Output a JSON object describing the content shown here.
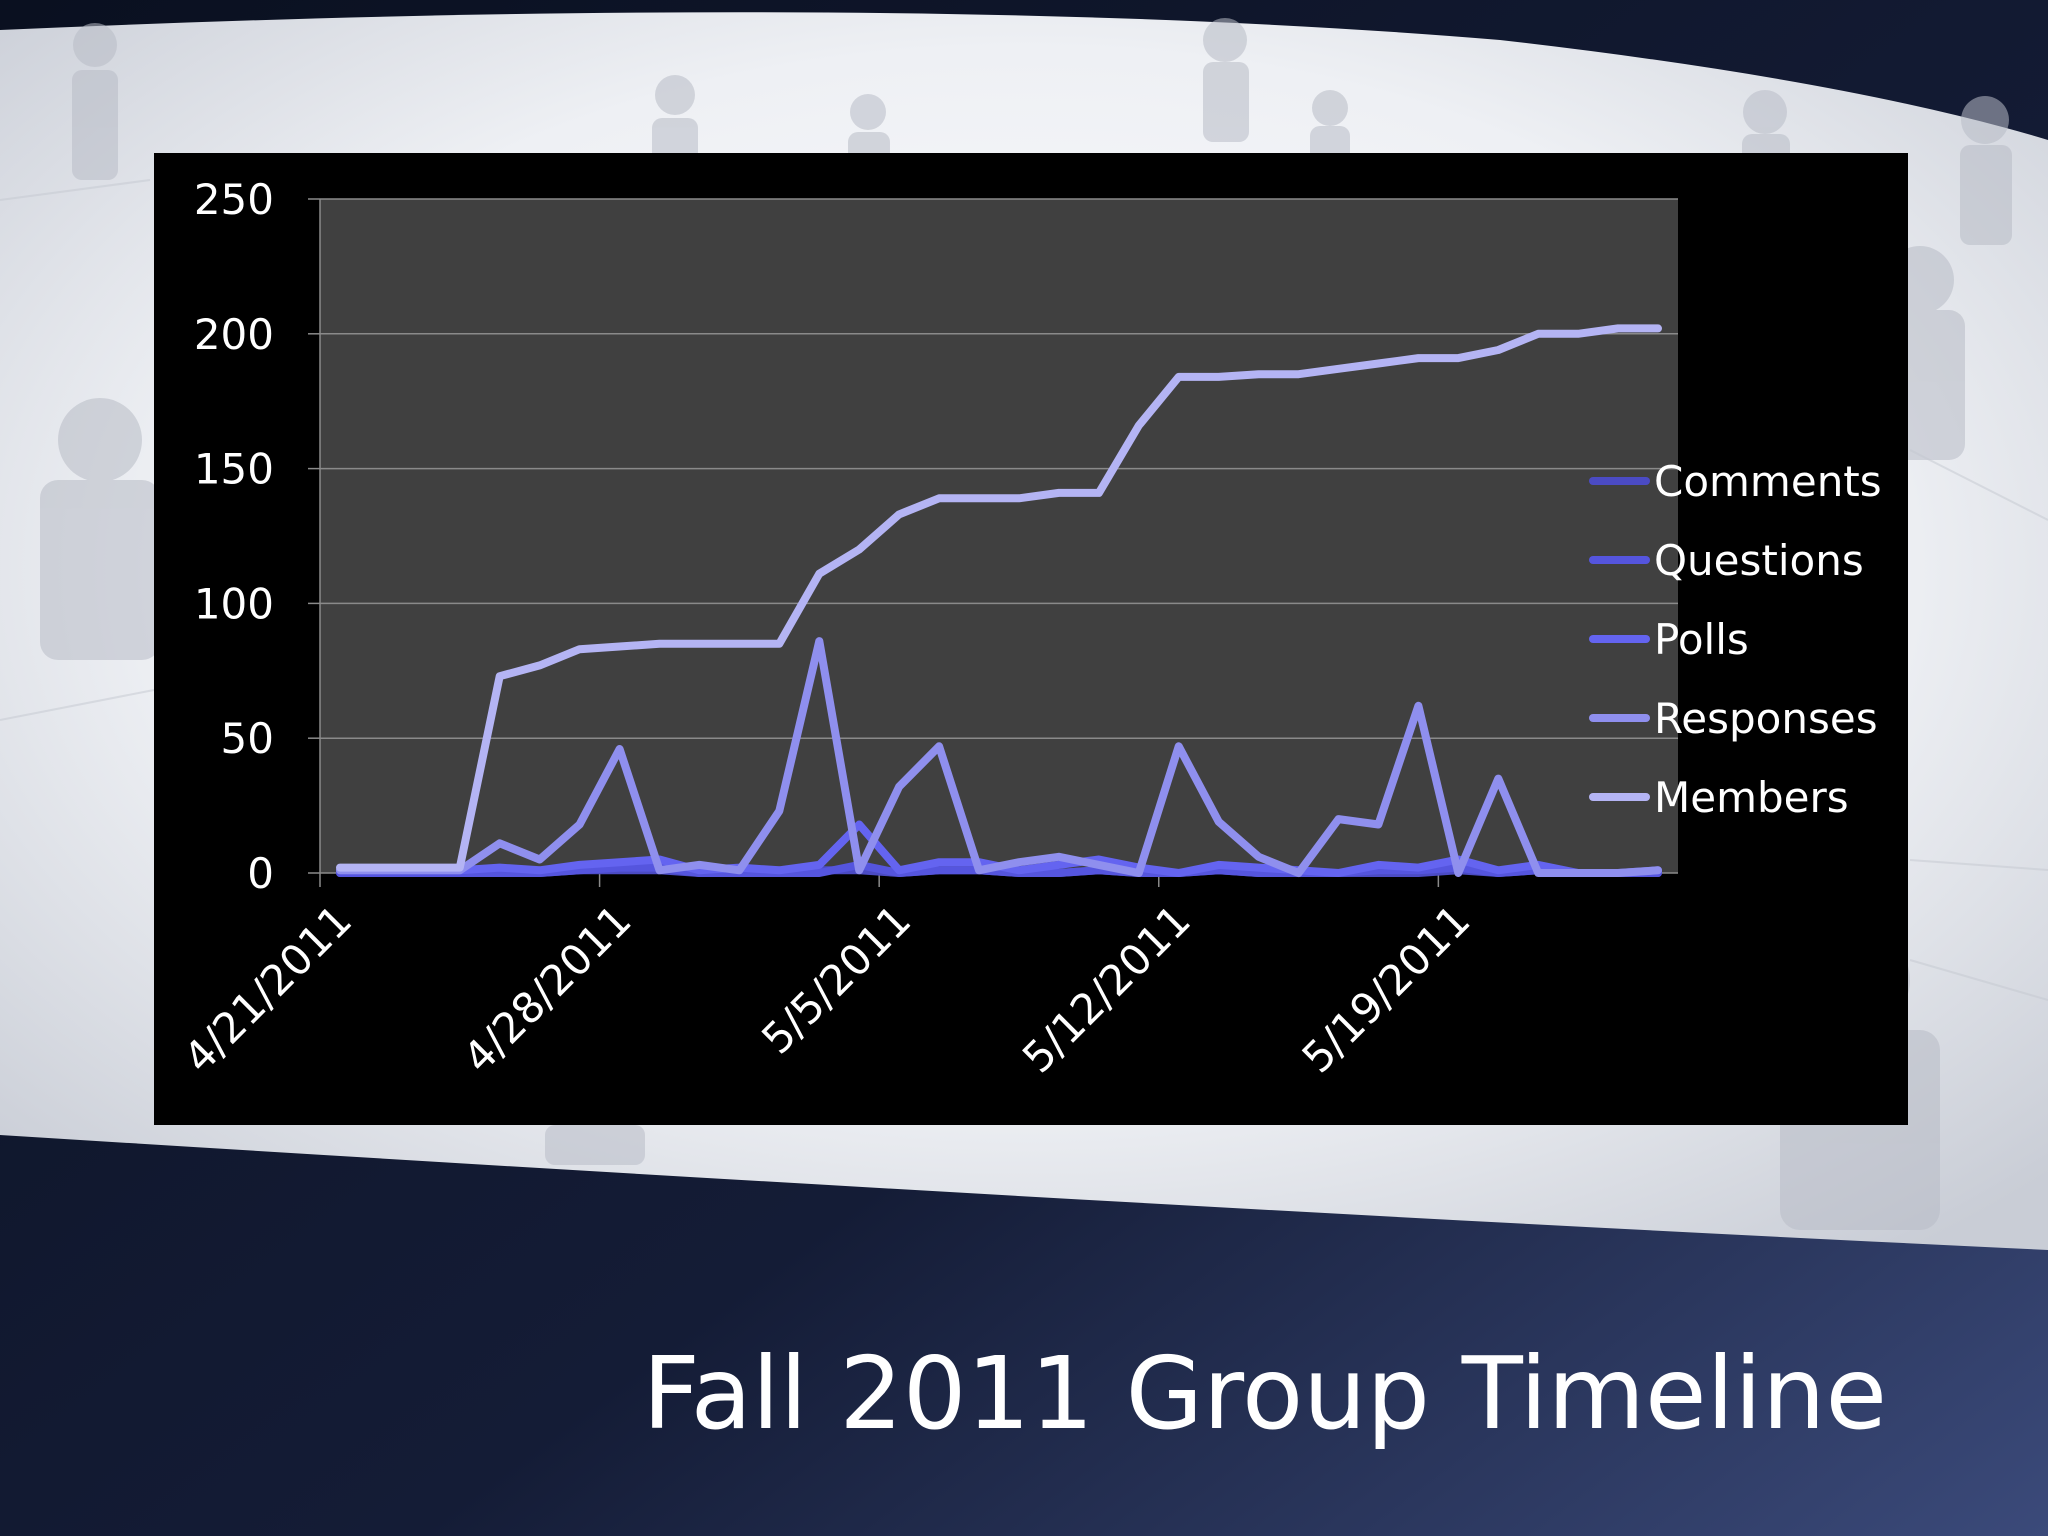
{
  "slide": {
    "title": "Fall 2011 Group Timeline"
  },
  "colors": {
    "slide_bg": "#0d1426",
    "chart_panel": "#000000",
    "plot_area": "#404040",
    "gridline": "#8a8a8a",
    "axis_text": "#ffffff",
    "comments": "#4b4bc4",
    "questions": "#5555de",
    "polls": "#6464f0",
    "responses": "#8f8fee",
    "members": "#b4b4f4"
  },
  "chart_data": {
    "type": "line",
    "title": "",
    "xlabel": "",
    "ylabel": "",
    "ylim": [
      0,
      250
    ],
    "yticks": [
      "0",
      "50",
      "100",
      "150",
      "200",
      "250"
    ],
    "xticks": [
      "4/21/2011",
      "4/28/2011",
      "5/5/2011",
      "5/12/2011",
      "5/19/2011"
    ],
    "grid": true,
    "legend_position": "right",
    "x": [
      "4/21/2011",
      "4/22/2011",
      "4/23/2011",
      "4/24/2011",
      "4/25/2011",
      "4/26/2011",
      "4/27/2011",
      "4/28/2011",
      "4/29/2011",
      "4/30/2011",
      "5/1/2011",
      "5/2/2011",
      "5/3/2011",
      "5/4/2011",
      "5/5/2011",
      "5/6/2011",
      "5/7/2011",
      "5/8/2011",
      "5/9/2011",
      "5/10/2011",
      "5/11/2011",
      "5/12/2011",
      "5/13/2011",
      "5/14/2011",
      "5/15/2011",
      "5/16/2011",
      "5/17/2011",
      "5/18/2011",
      "5/19/2011",
      "5/20/2011",
      "5/21/2011",
      "5/22/2011",
      "5/23/2011",
      "5/24/2011"
    ],
    "series": [
      {
        "name": "Comments",
        "color": "#4b4bc4",
        "values": [
          0,
          0,
          0,
          0,
          0,
          0,
          1,
          1,
          1,
          0,
          0,
          0,
          1,
          1,
          0,
          1,
          1,
          0,
          0,
          1,
          0,
          0,
          1,
          0,
          0,
          0,
          0,
          0,
          1,
          0,
          1,
          0,
          0,
          0
        ]
      },
      {
        "name": "Questions",
        "color": "#5555de",
        "values": [
          0,
          0,
          0,
          0,
          0,
          0,
          1,
          2,
          2,
          0,
          0,
          0,
          0,
          3,
          0,
          1,
          1,
          0,
          0,
          1,
          0,
          0,
          1,
          0,
          0,
          0,
          1,
          1,
          2,
          0,
          1,
          0,
          0,
          0
        ]
      },
      {
        "name": "Polls",
        "color": "#6464f0",
        "values": [
          1,
          1,
          1,
          1,
          2,
          1,
          3,
          4,
          5,
          1,
          2,
          1,
          3,
          18,
          1,
          4,
          4,
          1,
          3,
          5,
          2,
          0,
          3,
          2,
          1,
          0,
          3,
          2,
          5,
          1,
          3,
          0,
          0,
          1
        ]
      },
      {
        "name": "Responses",
        "color": "#8f8fee",
        "values": [
          1,
          1,
          1,
          1,
          11,
          5,
          18,
          46,
          1,
          3,
          1,
          23,
          86,
          1,
          32,
          47,
          1,
          4,
          6,
          3,
          0,
          47,
          19,
          6,
          0,
          20,
          18,
          62,
          0,
          35,
          0,
          0,
          0,
          1
        ]
      },
      {
        "name": "Members",
        "color": "#b4b4f4",
        "values": [
          2,
          2,
          2,
          2,
          73,
          77,
          83,
          84,
          85,
          85,
          85,
          85,
          111,
          120,
          133,
          139,
          139,
          139,
          141,
          141,
          166,
          184,
          184,
          185,
          185,
          187,
          189,
          191,
          191,
          194,
          200,
          200,
          202,
          202
        ]
      }
    ]
  }
}
